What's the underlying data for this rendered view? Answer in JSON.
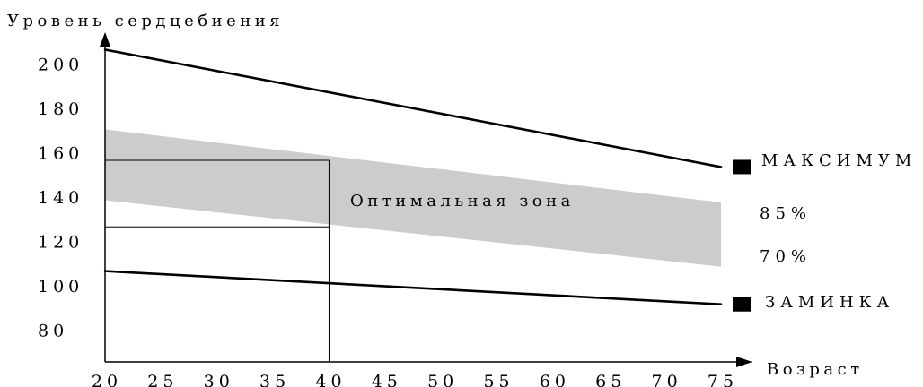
{
  "chart_data": {
    "type": "line",
    "ylabel": "Уровень сердцебиения",
    "xlabel": "Возраст",
    "x_ticks": [
      "20",
      "25",
      "30",
      "35",
      "40",
      "45",
      "50",
      "55",
      "60",
      "65",
      "70",
      "75"
    ],
    "y_ticks": [
      "80",
      "100",
      "120",
      "140",
      "160",
      "180",
      "200"
    ],
    "xlim": [
      20,
      75
    ],
    "ylim": [
      66,
      210
    ],
    "series": [
      {
        "name": "МАКСИМУМ",
        "x": [
          20,
          75
        ],
        "y": [
          207,
          154
        ]
      },
      {
        "name": "ЗАМИНКА",
        "x": [
          20,
          75
        ],
        "y": [
          107,
          92
        ]
      }
    ],
    "band": {
      "upper": {
        "label": "85%",
        "x": [
          20,
          75
        ],
        "y": [
          171,
          138
        ]
      },
      "lower": {
        "label": "70%",
        "x": [
          20,
          75
        ],
        "y": [
          139,
          109
        ]
      },
      "color": "#cccccc"
    },
    "annotation": {
      "text": "Оптимальная зона",
      "x": 40,
      "y_values": [
        157,
        127
      ]
    },
    "line_color": "#000000"
  }
}
